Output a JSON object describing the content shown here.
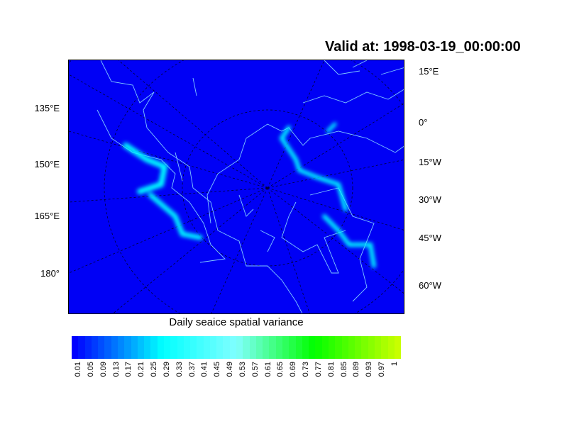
{
  "title": "Valid at: 1998-03-19_00:00:00",
  "map": {
    "projection": "polar stereographic (north)",
    "background_color": "#0000f5",
    "ice_highlight_color": "#00ffff",
    "coastline_color": "#7fc8ff",
    "left_labels": [
      "135°E",
      "150°E",
      "165°E",
      "180°"
    ],
    "right_labels": [
      "15°E",
      "0°",
      "15°W",
      "30°W",
      "45°W",
      "60°W"
    ]
  },
  "colorbar": {
    "title": "Daily seaice spatial variance",
    "labels": [
      "0.01",
      "0.05",
      "0.09",
      "0.13",
      "0.17",
      "0.21",
      "0.25",
      "0.29",
      "0.33",
      "0.37",
      "0.41",
      "0.45",
      "0.49",
      "0.53",
      "0.57",
      "0.61",
      "0.65",
      "0.69",
      "0.73",
      "0.77",
      "0.81",
      "0.85",
      "0.89",
      "0.93",
      "0.97",
      "1"
    ],
    "colors_stops": [
      "#0000ff",
      "#00ffff",
      "#80ffff",
      "#00ff00",
      "#c8ff00"
    ]
  }
}
